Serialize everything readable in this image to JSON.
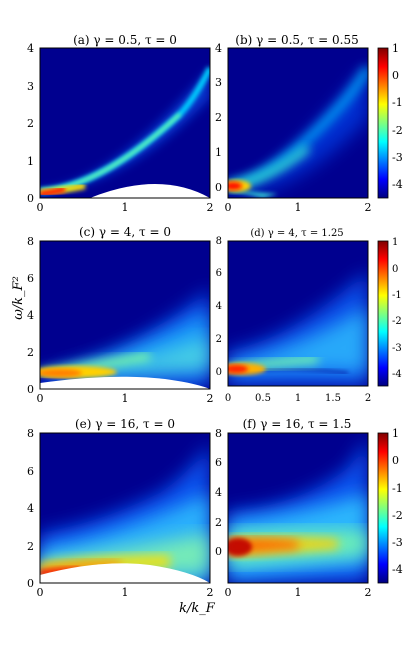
{
  "figure": {
    "ylabel": "ω/k_F²",
    "xlabel": "k/k_F",
    "colormap": "jet",
    "colors": {
      "background_dark_blue": "#00008f",
      "jet_low": "#00007f",
      "jet_high": "#7f0000"
    }
  },
  "chart_data": [
    {
      "type": "heatmap",
      "title": "(a) γ = 0.5, τ = 0",
      "xlim": [
        0,
        2
      ],
      "ylim": [
        0,
        4
      ],
      "xticks": [
        0,
        1,
        2
      ],
      "xtick_labels": [
        "0",
        "1",
        "2"
      ],
      "yticks": [
        0,
        1,
        2,
        3,
        4
      ],
      "ytick_labels": [
        "0",
        "1",
        "2",
        "3",
        "4"
      ],
      "feature": "narrow-parabola",
      "dispersion": "ω ≈ 0.95 k² + 0.1",
      "colorbar": null
    },
    {
      "type": "heatmap",
      "title": "(b) γ = 0.5, τ = 0.55",
      "xlim": [
        0,
        2
      ],
      "ylim": [
        -0.3,
        4
      ],
      "xticks": [
        0,
        1,
        2
      ],
      "xtick_labels": [
        "0",
        "1",
        "2"
      ],
      "yticks": [
        0,
        1,
        2,
        3,
        4
      ],
      "ytick_labels": [
        "0",
        "1",
        "2",
        "3",
        "4"
      ],
      "feature": "broad-parabola",
      "dispersion": "ω ≈ 0.95 k² + 0.05",
      "colorbar": {
        "range": [
          -4.5,
          1
        ],
        "ticks": [
          1,
          0,
          -1,
          -2,
          -3,
          -4
        ],
        "tick_labels": [
          "1",
          "0",
          "-1",
          "-2",
          "-3",
          "-4"
        ]
      }
    },
    {
      "type": "heatmap",
      "title": "(c) γ = 4, τ = 0",
      "xlim": [
        0,
        2
      ],
      "ylim": [
        0,
        8
      ],
      "xticks": [
        0,
        1,
        2
      ],
      "xtick_labels": [
        "0",
        "1",
        "2"
      ],
      "yticks": [
        0,
        2,
        4,
        6,
        8
      ],
      "ytick_labels": [
        "0",
        "2",
        "4",
        "6",
        "8"
      ],
      "feature": "broad-continuum",
      "dispersion": "ω ≈ 0.9 + 0.55 k²",
      "colorbar": null
    },
    {
      "type": "heatmap",
      "title": "(d) γ = 4, τ = 1.25",
      "xlim": [
        0,
        2
      ],
      "ylim": [
        -0.8,
        8
      ],
      "xticks": [
        0,
        0.5,
        1,
        1.5,
        2
      ],
      "xtick_labels": [
        "0",
        "0.5",
        "1",
        "1.5",
        "2"
      ],
      "yticks": [
        0,
        2,
        4,
        6,
        8
      ],
      "ytick_labels": [
        "0",
        "2",
        "4",
        "6",
        "8"
      ],
      "feature": "broad-continuum",
      "dispersion": "ω ≈ 0.2 + 0.55 k²",
      "colorbar": {
        "range": [
          -4.5,
          1
        ],
        "ticks": [
          1,
          0,
          -1,
          -2,
          -3,
          -4
        ],
        "tick_labels": [
          "1",
          "0",
          "-1",
          "-2",
          "-3",
          "-4"
        ]
      }
    },
    {
      "type": "heatmap",
      "title": "(e) γ = 16, τ = 0",
      "xlim": [
        0,
        2
      ],
      "ylim": [
        0,
        8
      ],
      "xticks": [
        0,
        1,
        2
      ],
      "xtick_labels": [
        "0",
        "1",
        "2"
      ],
      "yticks": [
        0,
        2,
        4,
        6,
        8
      ],
      "ytick_labels": [
        "0",
        "2",
        "4",
        "6",
        "8"
      ],
      "feature": "flat-band",
      "dispersion": "ω ≈ 1.2",
      "colorbar": null
    },
    {
      "type": "heatmap",
      "title": "(f) γ = 16, τ = 1.5",
      "xlim": [
        0,
        2
      ],
      "ylim": [
        -1.5,
        8
      ],
      "xticks": [
        0,
        1,
        2
      ],
      "xtick_labels": [
        "0",
        "1",
        "2"
      ],
      "yticks": [
        0,
        2,
        4,
        6,
        8
      ],
      "ytick_labels": [
        "0",
        "2",
        "4",
        "6",
        "8"
      ],
      "feature": "flat-band",
      "dispersion": "ω ≈ 0.4",
      "colorbar": {
        "range": [
          -4.5,
          1
        ],
        "ticks": [
          1,
          0,
          -1,
          -2,
          -3,
          -4
        ],
        "tick_labels": [
          "1",
          "0",
          "-1",
          "-2",
          "-3",
          "-4"
        ]
      }
    }
  ]
}
